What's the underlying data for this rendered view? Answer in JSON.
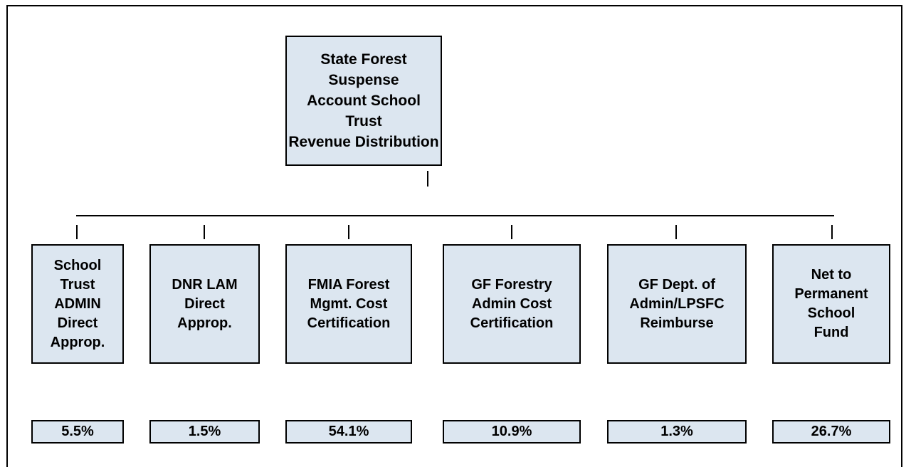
{
  "root": {
    "lines": [
      "State Forest Suspense",
      "Account School Trust",
      "Revenue Distribution"
    ]
  },
  "nodes": [
    {
      "lines": [
        "School",
        "Trust",
        "ADMIN",
        "Direct",
        "Approp."
      ],
      "share": "5.5%"
    },
    {
      "lines": [
        "DNR LAM",
        "Direct",
        "Approp."
      ],
      "share": "1.5%"
    },
    {
      "lines": [
        "FMIA Forest",
        "Mgmt. Cost",
        "Certification"
      ],
      "share": "54.1%"
    },
    {
      "lines": [
        "GF Forestry",
        "Admin Cost",
        "Certification"
      ],
      "share": "10.9%"
    },
    {
      "lines": [
        "GF Dept. of",
        "Admin/LPSFC",
        "Reimburse"
      ],
      "share": "1.3%"
    },
    {
      "lines": [
        "Net to",
        "Permanent",
        "School",
        "Fund"
      ],
      "share": "26.7%"
    }
  ]
}
